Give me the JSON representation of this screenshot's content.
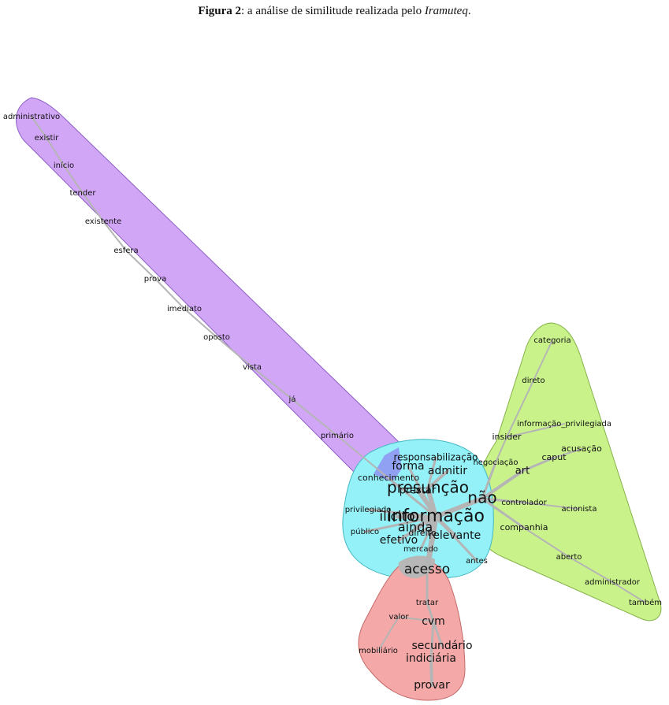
{
  "caption": {
    "label": "Figura 2",
    "text": ": a análise de similitude realizada pelo ",
    "software": "Iramuteq",
    "end": "."
  },
  "colors": {
    "purple": "#d2a6f7",
    "cyan": "#93f1f7",
    "green": "#c9f28b",
    "red": "#f4a8a8",
    "edge": "#b5b5b5"
  },
  "words": [
    {
      "id": "administrativo",
      "text": "administrativo"
    },
    {
      "id": "existir",
      "text": "existir"
    },
    {
      "id": "inicio",
      "text": "início"
    },
    {
      "id": "tender",
      "text": "tender"
    },
    {
      "id": "existente",
      "text": "existente"
    },
    {
      "id": "esfera",
      "text": "esfera"
    },
    {
      "id": "prova",
      "text": "prova"
    },
    {
      "id": "imediato",
      "text": "imediato"
    },
    {
      "id": "oposto",
      "text": "oposto"
    },
    {
      "id": "vista",
      "text": "vista"
    },
    {
      "id": "ja",
      "text": "já"
    },
    {
      "id": "primario",
      "text": "primário"
    },
    {
      "id": "categoria",
      "text": "categoria"
    },
    {
      "id": "direto",
      "text": "direto"
    },
    {
      "id": "informacao_privilegiada",
      "text": "informação_privilegiada"
    },
    {
      "id": "insider",
      "text": "insider"
    },
    {
      "id": "acusacao",
      "text": "acusação"
    },
    {
      "id": "caput",
      "text": "caput"
    },
    {
      "id": "negociacao",
      "text": "negociação"
    },
    {
      "id": "art",
      "text": "art"
    },
    {
      "id": "controlador",
      "text": "controlador"
    },
    {
      "id": "acionista",
      "text": "acionista"
    },
    {
      "id": "companhia",
      "text": "companhia"
    },
    {
      "id": "aberto",
      "text": "aberto"
    },
    {
      "id": "administrador",
      "text": "administrador"
    },
    {
      "id": "tambem",
      "text": "também"
    },
    {
      "id": "responsabilizacao",
      "text": "responsabilização"
    },
    {
      "id": "forma",
      "text": "forma"
    },
    {
      "id": "admitir",
      "text": "admitir"
    },
    {
      "id": "conhecimento",
      "text": "conhecimento"
    },
    {
      "id": "presuncao",
      "text": "presunção"
    },
    {
      "id": "prestar",
      "text": "prestar"
    },
    {
      "id": "nao",
      "text": "não"
    },
    {
      "id": "privilegiado",
      "text": "privilegiado"
    },
    {
      "id": "informacao",
      "text": "informação"
    },
    {
      "id": "ilicito",
      "text": "ilícito"
    },
    {
      "id": "publico",
      "text": "público"
    },
    {
      "id": "ainda",
      "text": "ainda"
    },
    {
      "id": "direito",
      "text": "direito"
    },
    {
      "id": "relevante",
      "text": "relevante"
    },
    {
      "id": "efetivo",
      "text": "efetivo"
    },
    {
      "id": "mercado",
      "text": "mercado"
    },
    {
      "id": "antes",
      "text": "antes"
    },
    {
      "id": "acesso",
      "text": "acesso"
    },
    {
      "id": "tratar",
      "text": "tratar"
    },
    {
      "id": "valor",
      "text": "valor"
    },
    {
      "id": "cvm",
      "text": "cvm"
    },
    {
      "id": "mobiliario",
      "text": "mobiliário"
    },
    {
      "id": "secundario",
      "text": "secundário"
    },
    {
      "id": "indiciaria",
      "text": "indiciária"
    },
    {
      "id": "provar",
      "text": "provar"
    }
  ]
}
